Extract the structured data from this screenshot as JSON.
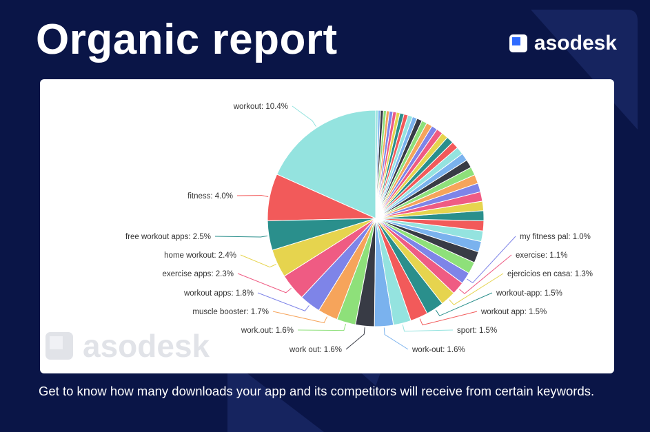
{
  "header": {
    "title": "Organic report",
    "brand_name": "asodesk"
  },
  "watermark": {
    "text": "asodesk"
  },
  "footer": {
    "caption": "Get to know how many downloads your app and its competitors will receive from certain keywords."
  },
  "colors": {
    "background": "#0a1547",
    "card": "#ffffff",
    "brand_blue": "#2f6bff"
  },
  "chart_data": {
    "type": "pie",
    "title": "",
    "labeled_slices": [
      {
        "label": "workout: 10.4%",
        "value": 10.4,
        "color": "#94e3df"
      },
      {
        "label": "fitness: 4.0%",
        "value": 4.0,
        "color": "#f25a5a"
      },
      {
        "label": "free workout apps: 2.5%",
        "value": 2.5,
        "color": "#2a8f8c"
      },
      {
        "label": "home workout: 2.4%",
        "value": 2.4,
        "color": "#e6d44e"
      },
      {
        "label": "exercise apps: 2.3%",
        "value": 2.3,
        "color": "#ef5b83"
      },
      {
        "label": "workout apps: 1.8%",
        "value": 1.8,
        "color": "#7e84e8"
      },
      {
        "label": "muscle booster: 1.7%",
        "value": 1.7,
        "color": "#f6a45b"
      },
      {
        "label": "work.out: 1.6%",
        "value": 1.6,
        "color": "#8ee07a"
      },
      {
        "label": "work out: 1.6%",
        "value": 1.6,
        "color": "#383b45"
      },
      {
        "label": "work-out: 1.6%",
        "value": 1.6,
        "color": "#7ab2ee"
      },
      {
        "label": "sport: 1.5%",
        "value": 1.5,
        "color": "#94e3df"
      },
      {
        "label": "workout app: 1.5%",
        "value": 1.5,
        "color": "#f25a5a"
      },
      {
        "label": "workout-app: 1.5%",
        "value": 1.5,
        "color": "#2a8f8c"
      },
      {
        "label": "ejercicios en casa: 1.3%",
        "value": 1.3,
        "color": "#e6d44e"
      },
      {
        "label": "exercise: 1.1%",
        "value": 1.1,
        "color": "#ef5b83"
      },
      {
        "label": "my fitness pal: 1.0%",
        "value": 1.0,
        "color": "#7e84e8"
      }
    ],
    "unlabeled_slices": [
      {
        "value": 1.0,
        "color": "#8ee07a"
      },
      {
        "value": 0.95,
        "color": "#383b45"
      },
      {
        "value": 0.9,
        "color": "#7ab2ee"
      },
      {
        "value": 0.9,
        "color": "#94e3df"
      },
      {
        "value": 0.85,
        "color": "#f25a5a"
      },
      {
        "value": 0.85,
        "color": "#2a8f8c"
      },
      {
        "value": 0.8,
        "color": "#e6d44e"
      },
      {
        "value": 0.8,
        "color": "#ef5b83"
      },
      {
        "value": 0.75,
        "color": "#7e84e8"
      },
      {
        "value": 0.75,
        "color": "#f6a45b"
      },
      {
        "value": 0.7,
        "color": "#8ee07a"
      },
      {
        "value": 0.7,
        "color": "#383b45"
      },
      {
        "value": 0.65,
        "color": "#7ab2ee"
      },
      {
        "value": 0.65,
        "color": "#94e3df"
      },
      {
        "value": 0.6,
        "color": "#f25a5a"
      },
      {
        "value": 0.6,
        "color": "#2a8f8c"
      },
      {
        "value": 0.55,
        "color": "#e6d44e"
      },
      {
        "value": 0.55,
        "color": "#ef5b83"
      },
      {
        "value": 0.5,
        "color": "#7e84e8"
      },
      {
        "value": 0.5,
        "color": "#f6a45b"
      },
      {
        "value": 0.45,
        "color": "#8ee07a"
      },
      {
        "value": 0.45,
        "color": "#383b45"
      },
      {
        "value": 0.4,
        "color": "#7ab2ee"
      },
      {
        "value": 0.4,
        "color": "#94e3df"
      },
      {
        "value": 0.35,
        "color": "#f25a5a"
      },
      {
        "value": 0.35,
        "color": "#2a8f8c"
      },
      {
        "value": 0.3,
        "color": "#e6d44e"
      },
      {
        "value": 0.3,
        "color": "#ef5b83"
      },
      {
        "value": 0.3,
        "color": "#7e84e8"
      },
      {
        "value": 0.25,
        "color": "#f6a45b"
      },
      {
        "value": 0.25,
        "color": "#8ee07a"
      },
      {
        "value": 0.25,
        "color": "#383b45"
      },
      {
        "value": 0.2,
        "color": "#7ab2ee"
      },
      {
        "value": 0.2,
        "color": "#94e3df"
      }
    ]
  }
}
